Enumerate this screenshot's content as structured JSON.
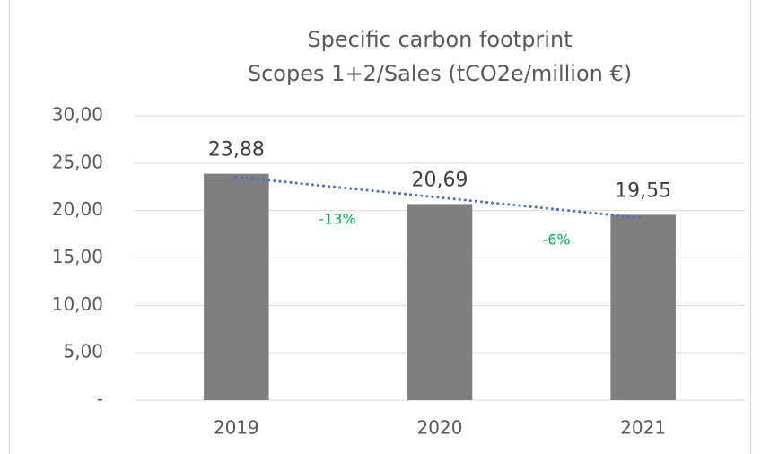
{
  "chart_data": {
    "type": "bar",
    "title": "Specific carbon footprint",
    "subtitle": "Scopes 1+2/Sales (tCO2e/million €)",
    "categories": [
      "2019",
      "2020",
      "2021"
    ],
    "values": [
      23.88,
      20.69,
      19.55
    ],
    "value_labels": [
      "23,88",
      "20,69",
      "19,55"
    ],
    "color": "#7f7f7f",
    "ylim": [
      0,
      30
    ],
    "yticks": [
      {
        "value": 0,
        "label": "-"
      },
      {
        "value": 5,
        "label": "5,00"
      },
      {
        "value": 10,
        "label": "10,00"
      },
      {
        "value": 15,
        "label": "15,00"
      },
      {
        "value": 20,
        "label": "20,00"
      },
      {
        "value": 25,
        "label": "25,00"
      },
      {
        "value": 30,
        "label": "30,00"
      }
    ],
    "grid": true,
    "trendline": {
      "type": "linear",
      "color": "#4472c4",
      "style": "dotted"
    },
    "annotations": [
      "-13%",
      "-6%"
    ]
  }
}
